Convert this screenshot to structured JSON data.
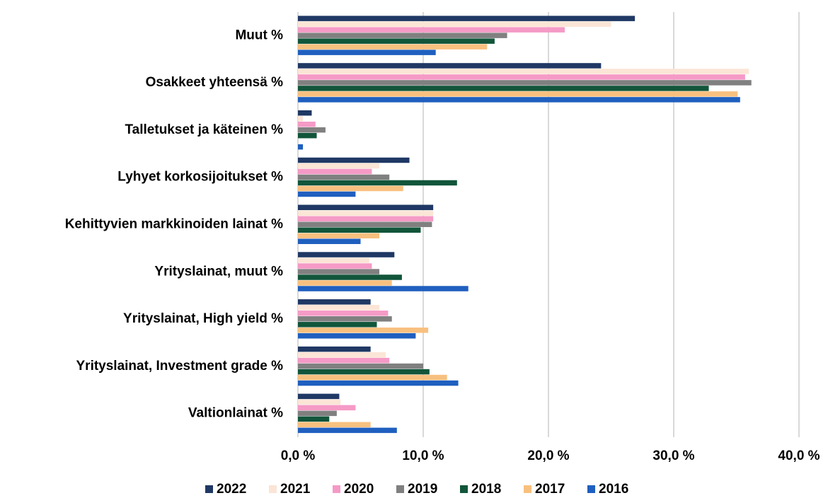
{
  "chart_data": {
    "type": "bar",
    "orientation": "horizontal",
    "categories": [
      "Muut %",
      "Osakkeet yhteensä %",
      "Talletukset ja käteinen %",
      "Lyhyet korkosijoitukset %",
      "Kehittyvien markkinoiden lainat %",
      "Yrityslainat, muut %",
      "Yrityslainat, High yield %",
      "Yrityslainat, Investment grade %",
      "Valtionlainat %"
    ],
    "series": [
      {
        "name": "2022",
        "color": "#1f3864",
        "values": [
          26.9,
          24.2,
          1.1,
          8.9,
          10.8,
          7.7,
          5.8,
          5.8,
          3.3
        ]
      },
      {
        "name": "2021",
        "color": "#fbe5d6",
        "values": [
          25.0,
          36.0,
          0.4,
          6.5,
          10.8,
          5.7,
          6.5,
          7.0,
          3.4
        ]
      },
      {
        "name": "2020",
        "color": "#f59ac6",
        "values": [
          21.3,
          35.7,
          1.4,
          5.9,
          10.8,
          5.9,
          7.2,
          7.3,
          4.6
        ]
      },
      {
        "name": "2019",
        "color": "#808080",
        "values": [
          16.7,
          36.2,
          2.2,
          7.3,
          10.7,
          6.5,
          7.5,
          10.0,
          3.1
        ]
      },
      {
        "name": "2018",
        "color": "#11553a",
        "values": [
          15.7,
          32.8,
          1.5,
          12.7,
          9.8,
          8.3,
          6.3,
          10.5,
          2.5
        ]
      },
      {
        "name": "2017",
        "color": "#f8c07f",
        "values": [
          15.1,
          35.1,
          0,
          8.4,
          6.5,
          7.5,
          10.4,
          11.9,
          5.8
        ]
      },
      {
        "name": "2016",
        "color": "#1f5fbf",
        "values": [
          11.0,
          35.3,
          0.4,
          4.6,
          5.0,
          13.6,
          9.4,
          12.8,
          7.9
        ]
      }
    ],
    "xlim": [
      0,
      40
    ],
    "xticks": [
      {
        "value": 0,
        "label": "0,0 %"
      },
      {
        "value": 10,
        "label": "10,0 %"
      },
      {
        "value": 20,
        "label": "20,0 %"
      },
      {
        "value": 30,
        "label": "30,0 %"
      },
      {
        "value": 40,
        "label": "40,0 %"
      }
    ],
    "grid": true,
    "legend": "bottom"
  }
}
